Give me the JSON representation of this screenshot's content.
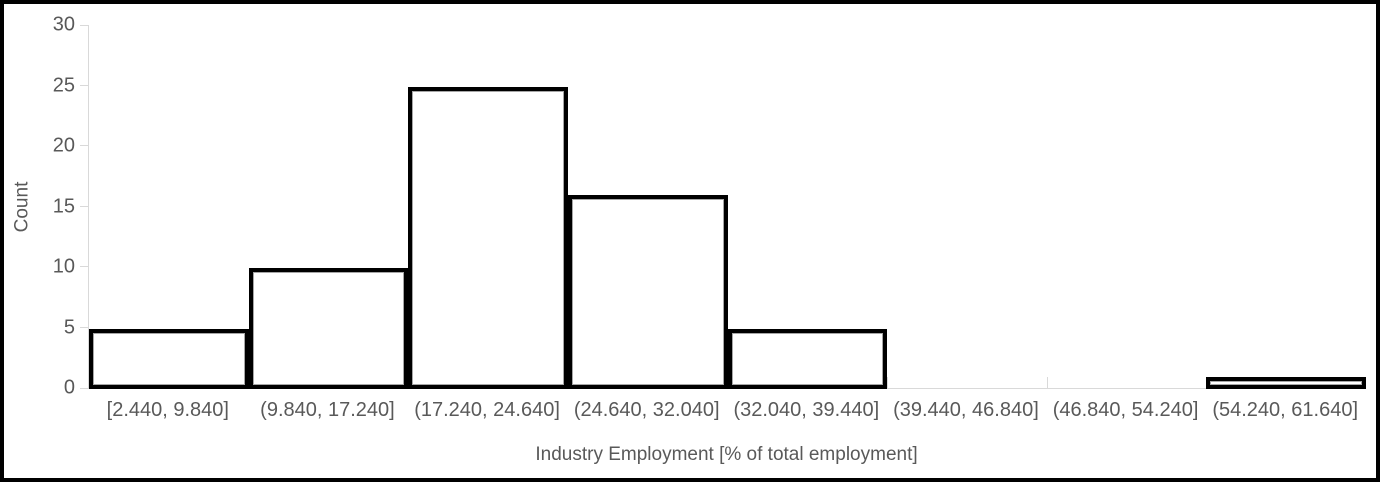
{
  "chart_data": {
    "type": "bar",
    "subtype": "histogram",
    "title": "",
    "xlabel": "Industry Employment [% of total employment]",
    "ylabel": "Count",
    "categories": [
      "[2.440, 9.840]",
      "(9.840, 17.240]",
      "(17.240, 24.640]",
      "(24.640, 32.040]",
      "(32.040, 39.440]",
      "(39.440, 46.840]",
      "(46.840, 54.240]",
      "(54.240, 61.640]"
    ],
    "values": [
      5,
      10,
      25,
      16,
      5,
      0,
      0,
      1
    ],
    "yticks": [
      0,
      5,
      10,
      15,
      20,
      25,
      30
    ],
    "ylim": [
      0,
      30
    ],
    "grid": false,
    "legend": false,
    "bar_gap": 0,
    "colors": {
      "bar_fill": "#ffffff",
      "bar_border": "#000000",
      "bar_inner_edge": "#a6a6a6",
      "axis_line": "#d9d9d9",
      "text": "#595959",
      "frame_border": "#000000",
      "background": "#ffffff"
    }
  }
}
